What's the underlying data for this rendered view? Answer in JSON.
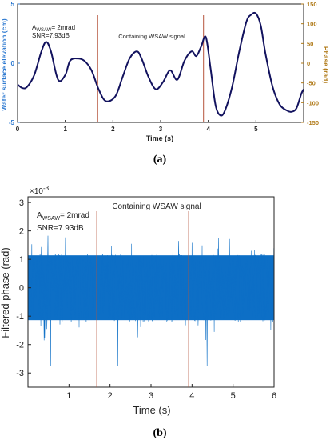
{
  "colors": {
    "wave": "#12125e",
    "phase_noise": "#0d6fc6",
    "left_axis": "#2e7ad1",
    "right_axis": "#b07a18",
    "marker": "#b5543b",
    "frame": "#222222"
  },
  "chart_data": [
    {
      "type": "line",
      "panel": "a",
      "caption": "(a)",
      "xlabel": "Time (s)",
      "ylabel_left": "Water surface elevation (cm)",
      "ylabel_right": "Phase (rad)",
      "xlim": [
        0,
        6
      ],
      "ylim_left": [
        -5,
        5
      ],
      "ylim_right": [
        -150,
        150
      ],
      "xticks": [
        "0",
        "1",
        "2",
        "3",
        "4",
        "5"
      ],
      "yticks_left": [
        "5",
        "0",
        "-5"
      ],
      "yticks_right": [
        "150",
        "100",
        "50",
        "0",
        "-50",
        "-100",
        "-150"
      ],
      "annotation_main": "A",
      "annotation_sub": "WSAW",
      "annotation_rest": "= 2mrad",
      "annotation_snr": "SNR=7.93dB",
      "region_label": "Containing WSAW signal",
      "markers_x": [
        1.68,
        3.9
      ],
      "series": [
        {
          "x": [
            0,
            0.1,
            0.2,
            0.35,
            0.5,
            0.6,
            0.7,
            0.85,
            1.0,
            1.1,
            1.25,
            1.4,
            1.55,
            1.7,
            1.85,
            2.05,
            2.2,
            2.35,
            2.5,
            2.6,
            2.75,
            2.9,
            3.05,
            3.2,
            3.35,
            3.5,
            3.65,
            3.75,
            3.85,
            3.95,
            4.05,
            4.15,
            4.25,
            4.35,
            4.5,
            4.65,
            4.8,
            4.9,
            5.0,
            5.1,
            5.2,
            5.35,
            5.5,
            5.65,
            5.75,
            5.85,
            5.95,
            6.0
          ],
          "y": [
            -1.8,
            -2.1,
            -2.0,
            -1.0,
            1.0,
            1.8,
            1.0,
            -1.4,
            -1.0,
            0.2,
            0.4,
            0.2,
            -0.6,
            -2.2,
            -3.2,
            -2.8,
            -1.2,
            0.4,
            1.0,
            0.4,
            -1.2,
            -2.2,
            -1.6,
            -0.6,
            -1.4,
            0.2,
            1.0,
            0.6,
            1.4,
            2.2,
            -0.5,
            -3.5,
            -4.4,
            -4.0,
            -2.0,
            1.0,
            3.5,
            4.1,
            4.2,
            3.2,
            0.8,
            -2.0,
            -3.5,
            -4.0,
            -4.1,
            -3.8,
            -2.6,
            -2.2
          ]
        }
      ]
    },
    {
      "type": "line",
      "panel": "b",
      "caption": "(b)",
      "xlabel": "Time (s)",
      "ylabel": "Filtered phase (rad)",
      "exponent": "×10",
      "exponent_power": "-3",
      "xlim": [
        0,
        6
      ],
      "ylim": [
        -3.5,
        3.2
      ],
      "xticks": [
        "1",
        "2",
        "3",
        "4",
        "5",
        "6"
      ],
      "yticks": [
        "3",
        "2",
        "1",
        "0",
        "-1",
        "-2",
        "-3"
      ],
      "annotation_main": "A",
      "annotation_sub": "WSAW",
      "annotation_rest": "= 2mrad",
      "annotation_snr": "SNR=7.93dB",
      "region_label": "Containing WSAW signal",
      "markers_x": [
        1.68,
        3.92
      ],
      "noise_band": [
        -1.2,
        1.2
      ],
      "noise_peaks": [
        -2.9,
        2.7
      ]
    }
  ]
}
